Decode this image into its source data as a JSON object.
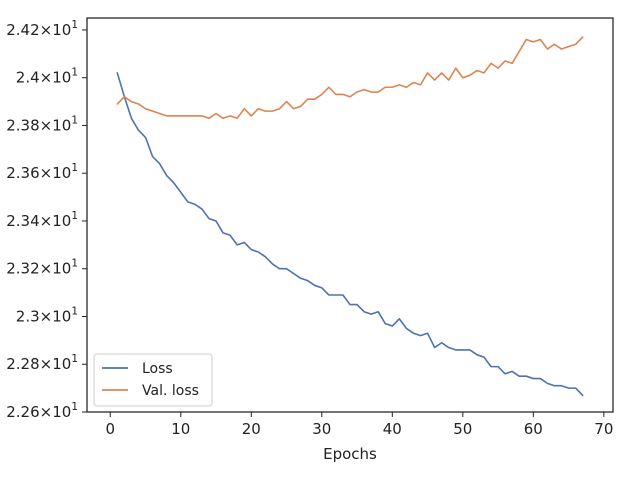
{
  "chart_data": {
    "type": "line",
    "title": "",
    "xlabel": "Epochs",
    "ylabel": "",
    "xlim": [
      -3.3,
      71.3
    ],
    "ylim": [
      22.6,
      24.25
    ],
    "xticks": [
      0,
      10,
      20,
      30,
      40,
      50,
      60,
      70
    ],
    "xtick_labels": [
      "0",
      "10",
      "20",
      "30",
      "40",
      "50",
      "60",
      "70"
    ],
    "yticks": [
      22.6,
      22.8,
      23.0,
      23.2,
      23.4,
      23.6,
      23.8,
      24.0,
      24.2
    ],
    "ytick_labels": [
      {
        "mantissa": "2.26",
        "base": "10",
        "exp": "1"
      },
      {
        "mantissa": "2.28",
        "base": "10",
        "exp": "1"
      },
      {
        "mantissa": "2.3",
        "base": "10",
        "exp": "1"
      },
      {
        "mantissa": "2.32",
        "base": "10",
        "exp": "1"
      },
      {
        "mantissa": "2.34",
        "base": "10",
        "exp": "1"
      },
      {
        "mantissa": "2.36",
        "base": "10",
        "exp": "1"
      },
      {
        "mantissa": "2.38",
        "base": "10",
        "exp": "1"
      },
      {
        "mantissa": "2.4",
        "base": "10",
        "exp": "1"
      },
      {
        "mantissa": "2.42",
        "base": "10",
        "exp": "1"
      }
    ],
    "grid": false,
    "legend_position": "lower-left",
    "x": [
      1,
      2,
      3,
      4,
      5,
      6,
      7,
      8,
      9,
      10,
      11,
      12,
      13,
      14,
      15,
      16,
      17,
      18,
      19,
      20,
      21,
      22,
      23,
      24,
      25,
      26,
      27,
      28,
      29,
      30,
      31,
      32,
      33,
      34,
      35,
      36,
      37,
      38,
      39,
      40,
      41,
      42,
      43,
      44,
      45,
      46,
      47,
      48,
      49,
      50,
      51,
      52,
      53,
      54,
      55,
      56,
      57,
      58,
      59,
      60,
      61,
      62,
      63,
      64,
      65,
      66,
      67
    ],
    "series": [
      {
        "name": "Loss",
        "color": "#4c72b0",
        "values": [
          24.02,
          23.92,
          23.83,
          23.78,
          23.75,
          23.67,
          23.64,
          23.59,
          23.56,
          23.52,
          23.48,
          23.47,
          23.45,
          23.41,
          23.4,
          23.35,
          23.34,
          23.3,
          23.31,
          23.28,
          23.27,
          23.25,
          23.22,
          23.2,
          23.2,
          23.18,
          23.16,
          23.15,
          23.13,
          23.12,
          23.09,
          23.09,
          23.09,
          23.05,
          23.05,
          23.02,
          23.01,
          23.02,
          22.97,
          22.96,
          22.99,
          22.95,
          22.93,
          22.92,
          22.93,
          22.87,
          22.89,
          22.87,
          22.86,
          22.86,
          22.86,
          22.84,
          22.83,
          22.79,
          22.79,
          22.76,
          22.77,
          22.75,
          22.75,
          22.74,
          22.74,
          22.72,
          22.71,
          22.71,
          22.7,
          22.7,
          22.67
        ]
      },
      {
        "name": "Val. loss",
        "color": "#dd8452",
        "values": [
          23.89,
          23.92,
          23.9,
          23.89,
          23.87,
          23.86,
          23.85,
          23.84,
          23.84,
          23.84,
          23.84,
          23.84,
          23.84,
          23.83,
          23.85,
          23.83,
          23.84,
          23.83,
          23.87,
          23.84,
          23.87,
          23.86,
          23.86,
          23.87,
          23.9,
          23.87,
          23.88,
          23.91,
          23.91,
          23.93,
          23.96,
          23.93,
          23.93,
          23.92,
          23.94,
          23.95,
          23.94,
          23.94,
          23.96,
          23.96,
          23.97,
          23.96,
          23.98,
          23.97,
          24.02,
          23.99,
          24.02,
          23.99,
          24.04,
          24.0,
          24.01,
          24.03,
          24.02,
          24.06,
          24.04,
          24.07,
          24.06,
          24.11,
          24.16,
          24.15,
          24.16,
          24.12,
          24.14,
          24.12,
          24.13,
          24.14,
          24.17
        ]
      }
    ]
  }
}
